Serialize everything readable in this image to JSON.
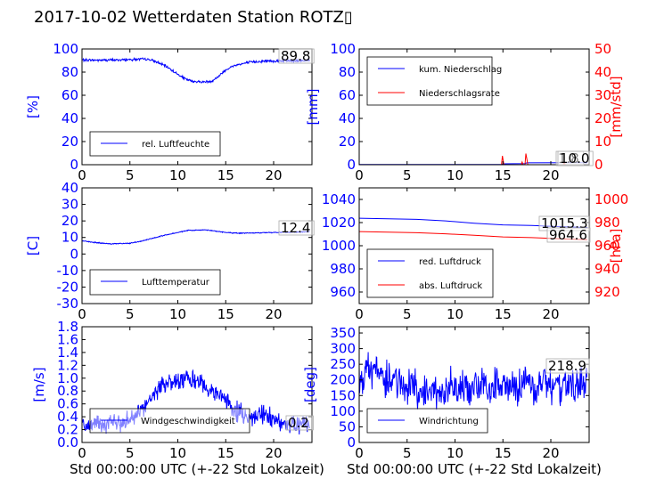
{
  "figure": {
    "title": "2017-10-02 Wetterdaten Station ROTZ▯"
  },
  "colors": {
    "blue": "#0000ff",
    "red": "#ff0000",
    "black": "#000000"
  },
  "chart_data": [
    {
      "id": "humidity",
      "type": "line",
      "ylabel": "[%]",
      "xlim": [
        0,
        24
      ],
      "ylim": [
        0,
        100
      ],
      "xticks": [
        0,
        5,
        10,
        15,
        20
      ],
      "yticks": [
        0,
        20,
        40,
        60,
        80,
        100
      ],
      "grid": false,
      "legend": "lower-left",
      "current_value": "89.8",
      "series": [
        {
          "name": "rel. Luftfeuchte",
          "color": "blue",
          "noise": 1.0,
          "points": [
            [
              0,
              90.5
            ],
            [
              2,
              90.3
            ],
            [
              4,
              90.6
            ],
            [
              5.5,
              91.0
            ],
            [
              6.5,
              91.2
            ],
            [
              7.2,
              90.5
            ],
            [
              8,
              88
            ],
            [
              9,
              84
            ],
            [
              10,
              78
            ],
            [
              10.8,
              74
            ],
            [
              11.5,
              72
            ],
            [
              12.5,
              71.5
            ],
            [
              13.5,
              72
            ],
            [
              14.2,
              76
            ],
            [
              15,
              82
            ],
            [
              16,
              86
            ],
            [
              17.5,
              88.5
            ],
            [
              19,
              89.5
            ],
            [
              21,
              89.8
            ],
            [
              23.8,
              90
            ]
          ]
        }
      ]
    },
    {
      "id": "precipitation",
      "type": "line",
      "ylabel": "[mm]",
      "ylabel2": "[mm/std]",
      "xlim": [
        0,
        24
      ],
      "ylim": [
        0,
        100
      ],
      "ylim2": [
        0,
        50
      ],
      "xticks": [
        0,
        5,
        10,
        15,
        20
      ],
      "yticks": [
        0,
        20,
        40,
        60,
        80,
        100
      ],
      "yticks2": [
        0,
        10,
        20,
        30,
        40,
        50
      ],
      "grid": false,
      "legend": "top-left",
      "current_value": "10.0",
      "current_value2": "1.8",
      "series": [
        {
          "name": "kum. Niederschlag",
          "color": "blue",
          "axis": "left",
          "points": [
            [
              0,
              0.2
            ],
            [
              14.9,
              0.2
            ],
            [
              15,
              0.8
            ],
            [
              17.3,
              1.0
            ],
            [
              17.5,
              1.6
            ],
            [
              23.8,
              1.8
            ]
          ]
        },
        {
          "name": "Niederschlagsrate",
          "color": "red",
          "axis": "right",
          "points": [
            [
              0,
              0
            ],
            [
              14.85,
              0
            ],
            [
              14.95,
              3.8
            ],
            [
              15.1,
              0
            ],
            [
              16.9,
              0
            ],
            [
              17.0,
              1.2
            ],
            [
              17.1,
              0
            ],
            [
              17.3,
              0
            ],
            [
              17.4,
              4.8
            ],
            [
              17.5,
              2.5
            ],
            [
              17.6,
              0
            ],
            [
              21.3,
              0
            ],
            [
              21.4,
              1.0
            ],
            [
              21.5,
              0
            ],
            [
              23.8,
              0
            ]
          ]
        }
      ]
    },
    {
      "id": "temperature",
      "type": "line",
      "ylabel": "[C]",
      "xlim": [
        0,
        24
      ],
      "ylim": [
        -30,
        40
      ],
      "xticks": [
        0,
        5,
        10,
        15,
        20
      ],
      "yticks": [
        -30,
        -20,
        -10,
        0,
        10,
        20,
        30,
        40
      ],
      "grid": false,
      "legend": "lower-left",
      "current_value": "12.4",
      "series": [
        {
          "name": "Lufttemperatur",
          "color": "blue",
          "noise": 0.25,
          "points": [
            [
              0,
              8.0
            ],
            [
              1,
              7.2
            ],
            [
              2,
              6.6
            ],
            [
              3,
              6.2
            ],
            [
              4,
              6.3
            ],
            [
              5,
              6.5
            ],
            [
              6,
              7.5
            ],
            [
              7,
              9
            ],
            [
              8,
              10.5
            ],
            [
              9,
              11.8
            ],
            [
              10,
              13
            ],
            [
              11,
              14.2
            ],
            [
              12,
              14.4
            ],
            [
              13,
              14.6
            ],
            [
              14,
              13.8
            ],
            [
              15,
              13.0
            ],
            [
              16,
              12.6
            ],
            [
              18,
              12.8
            ],
            [
              20,
              13.0
            ],
            [
              22,
              13.2
            ],
            [
              23.8,
              13.5
            ]
          ]
        }
      ]
    },
    {
      "id": "pressure",
      "type": "line",
      "ylabel2": "[hPa]",
      "xlim": [
        0,
        24
      ],
      "ylim": [
        950,
        1050
      ],
      "ylim2": [
        910,
        1010
      ],
      "xticks": [
        0,
        5,
        10,
        15,
        20
      ],
      "yticks": [
        960,
        980,
        1000,
        1020,
        1040
      ],
      "yticks2": [
        920,
        940,
        960,
        980,
        1000
      ],
      "grid": false,
      "legend": "lower-left",
      "current_value": "1015.3",
      "current_value2": "964.6",
      "series": [
        {
          "name": "red. Luftdruck",
          "color": "blue",
          "axis": "left",
          "points": [
            [
              0,
              1023.8
            ],
            [
              3,
              1023.3
            ],
            [
              6,
              1022.8
            ],
            [
              9,
              1021.5
            ],
            [
              12,
              1019.5
            ],
            [
              15,
              1018.0
            ],
            [
              18,
              1017.5
            ],
            [
              21,
              1016.5
            ],
            [
              23.8,
              1015.8
            ]
          ]
        },
        {
          "name": "abs. Luftdruck",
          "color": "red",
          "axis": "right",
          "points": [
            [
              0,
              972.2
            ],
            [
              3,
              971.8
            ],
            [
              6,
              971.2
            ],
            [
              9,
              970.3
            ],
            [
              12,
              969.0
            ],
            [
              15,
              967.6
            ],
            [
              18,
              967.0
            ],
            [
              21,
              966.0
            ],
            [
              23.8,
              965.2
            ]
          ]
        }
      ]
    },
    {
      "id": "windspeed",
      "type": "line",
      "ylabel": "[m/s]",
      "xlabel": "Std 00:00:00 UTC (+-22 Std Lokalzeit)",
      "xlim": [
        0,
        24
      ],
      "ylim": [
        0,
        1.8
      ],
      "xticks": [
        0,
        5,
        10,
        15,
        20
      ],
      "yticks": [
        0.0,
        0.2,
        0.4,
        0.6,
        0.8,
        1.0,
        1.2,
        1.4,
        1.6,
        1.8
      ],
      "grid": false,
      "legend": "lower-left",
      "current_value": "0.2",
      "series": [
        {
          "name": "Windgeschwindigkeit",
          "color": "blue",
          "noise": 0.13,
          "points": [
            [
              0,
              0.3
            ],
            [
              1,
              0.28
            ],
            [
              2,
              0.28
            ],
            [
              3,
              0.3
            ],
            [
              4,
              0.3
            ],
            [
              5,
              0.35
            ],
            [
              6,
              0.45
            ],
            [
              7,
              0.7
            ],
            [
              8,
              0.85
            ],
            [
              9,
              0.95
            ],
            [
              10,
              0.95
            ],
            [
              11,
              1.0
            ],
            [
              12,
              0.95
            ],
            [
              13,
              0.85
            ],
            [
              14,
              0.75
            ],
            [
              15,
              0.65
            ],
            [
              16,
              0.5
            ],
            [
              17,
              0.4
            ],
            [
              18,
              0.4
            ],
            [
              19,
              0.45
            ],
            [
              20,
              0.35
            ],
            [
              21,
              0.3
            ],
            [
              22,
              0.28
            ],
            [
              23,
              0.3
            ],
            [
              23.8,
              0.25
            ]
          ]
        }
      ]
    },
    {
      "id": "winddirection",
      "type": "line",
      "ylabel": "[deg]",
      "xlabel": "Std 00:00:00 UTC (+-22 Std Lokalzeit)",
      "xlim": [
        0,
        24
      ],
      "ylim": [
        0,
        370
      ],
      "xticks": [
        0,
        5,
        10,
        15,
        20
      ],
      "yticks": [
        0,
        50,
        100,
        150,
        200,
        250,
        300,
        350
      ],
      "grid": false,
      "legend": "lower-left",
      "current_value": "218.9",
      "series": [
        {
          "name": "Windrichtung",
          "color": "blue",
          "noise": 55,
          "points": [
            [
              0,
              200
            ],
            [
              1,
              220
            ],
            [
              2,
              210
            ],
            [
              3,
              200
            ],
            [
              4,
              195
            ],
            [
              5,
              180
            ],
            [
              6,
              170
            ],
            [
              8,
              165
            ],
            [
              10,
              175
            ],
            [
              12,
              175
            ],
            [
              14,
              185
            ],
            [
              15,
              190
            ],
            [
              16,
              180
            ],
            [
              18,
              180
            ],
            [
              20,
              185
            ],
            [
              22,
              185
            ],
            [
              23.8,
              180
            ]
          ]
        }
      ]
    }
  ]
}
